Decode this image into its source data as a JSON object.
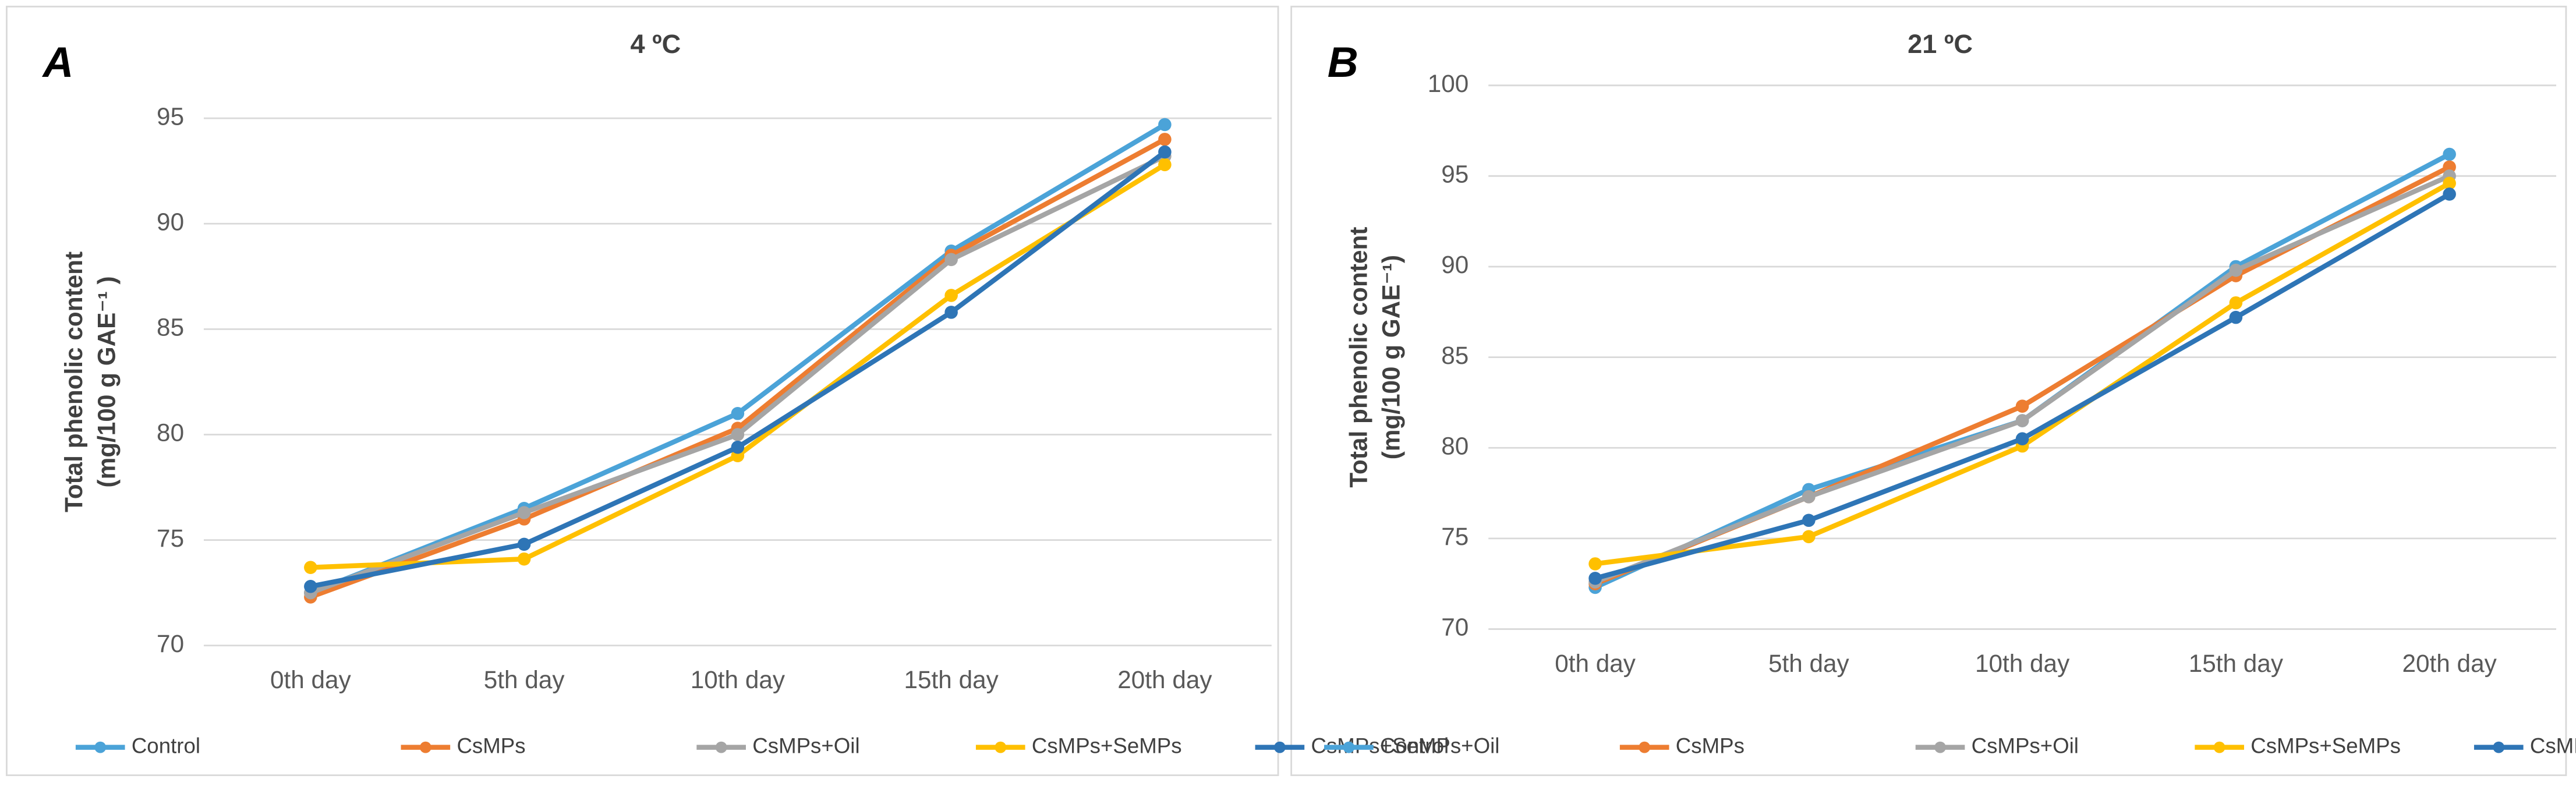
{
  "chart_data": [
    {
      "type": "line",
      "panel_label": "A",
      "title": "4 ºC",
      "y_label": [
        "Total phenolic content",
        "(mg/100 g GAE⁻¹ )"
      ],
      "categories": [
        "0th day",
        "5th day",
        "10th day",
        "15th day",
        "20th day"
      ],
      "ylim": [
        70,
        95
      ],
      "yticks": [
        70,
        75,
        80,
        85,
        90,
        95
      ],
      "grid": true,
      "series": [
        {
          "name": "Control",
          "color": "#4ba3d8",
          "values": [
            72.5,
            76.5,
            81.0,
            88.7,
            94.7
          ]
        },
        {
          "name": "CsMPs",
          "color": "#ed7d31",
          "values": [
            72.3,
            76.0,
            80.3,
            88.5,
            94.0
          ]
        },
        {
          "name": "CsMPs+Oil",
          "color": "#a5a5a5",
          "values": [
            72.5,
            76.3,
            80.0,
            88.3,
            93.2
          ]
        },
        {
          "name": "CsMPs+SeMPs",
          "color": "#ffc000",
          "values": [
            73.7,
            74.1,
            79.0,
            86.6,
            92.8
          ]
        },
        {
          "name": "CsMPs+SeMPs+Oil",
          "color": "#2e75b6",
          "values": [
            72.8,
            74.8,
            79.4,
            85.8,
            93.4
          ]
        }
      ]
    },
    {
      "type": "line",
      "panel_label": "B",
      "title": "21 ºC",
      "y_label": [
        "Total phenolic content",
        "(mg/100 g GAE⁻¹)"
      ],
      "categories": [
        "0th day",
        "5th day",
        "10th day",
        "15th day",
        "20th day"
      ],
      "ylim": [
        70,
        100
      ],
      "yticks": [
        70,
        75,
        80,
        85,
        90,
        95,
        100
      ],
      "grid": true,
      "series": [
        {
          "name": "Control",
          "color": "#4ba3d8",
          "values": [
            72.3,
            77.7,
            81.5,
            90.0,
            96.2
          ]
        },
        {
          "name": "CsMPs",
          "color": "#ed7d31",
          "values": [
            72.5,
            77.3,
            82.3,
            89.5,
            95.5
          ]
        },
        {
          "name": "CsMPs+Oil",
          "color": "#a5a5a5",
          "values": [
            72.6,
            77.3,
            81.5,
            89.8,
            95.0
          ]
        },
        {
          "name": "CsMPs+SeMPs",
          "color": "#ffc000",
          "values": [
            73.6,
            75.1,
            80.1,
            88.0,
            94.6
          ]
        },
        {
          "name": "CsMPs+SeMPs+Oil",
          "color": "#2e75b6",
          "values": [
            72.8,
            76.0,
            80.5,
            87.2,
            94.0
          ]
        }
      ]
    }
  ]
}
